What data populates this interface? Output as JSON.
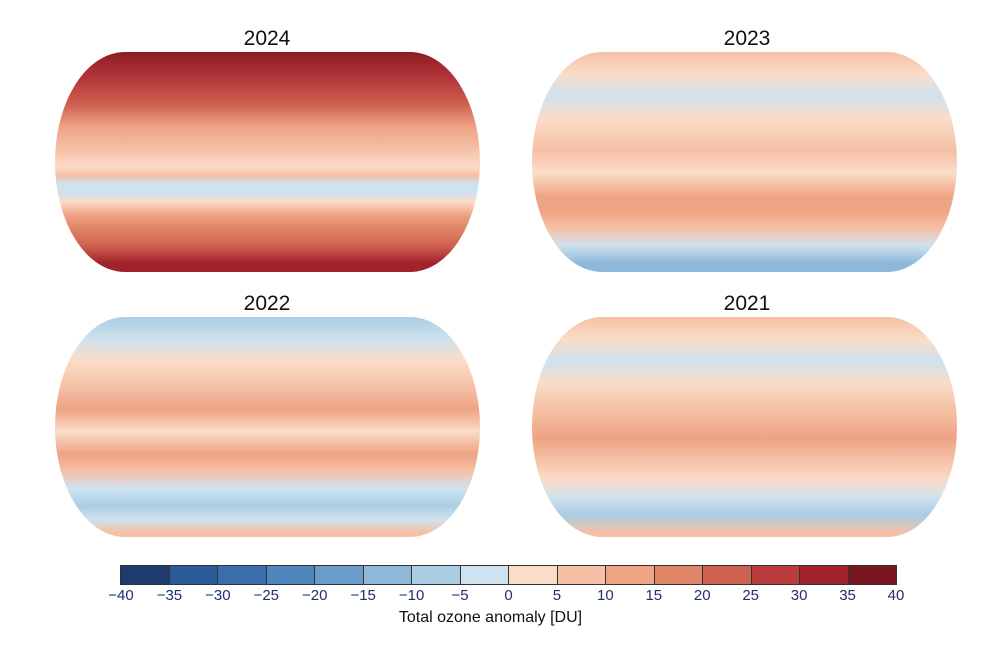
{
  "panels": [
    {
      "title": "2024"
    },
    {
      "title": "2023"
    },
    {
      "title": "2022"
    },
    {
      "title": "2021"
    }
  ],
  "colorbar": {
    "label": "Total ozone anomaly [DU]",
    "ticks": [
      "−40",
      "−35",
      "−30",
      "−25",
      "−20",
      "−15",
      "−10",
      "−5",
      "0",
      "5",
      "10",
      "15",
      "20",
      "25",
      "30",
      "35",
      "40"
    ],
    "colors": [
      "#1d3b6e",
      "#2b5a99",
      "#3a6eaa",
      "#4f86bd",
      "#6a9ccb",
      "#8db8da",
      "#aacde4",
      "#cfe2ef",
      "#fbdcc8",
      "#f5c0a5",
      "#eea383",
      "#e08568",
      "#cf6150",
      "#bb3c3c",
      "#a0232b",
      "#7a1620"
    ]
  }
}
